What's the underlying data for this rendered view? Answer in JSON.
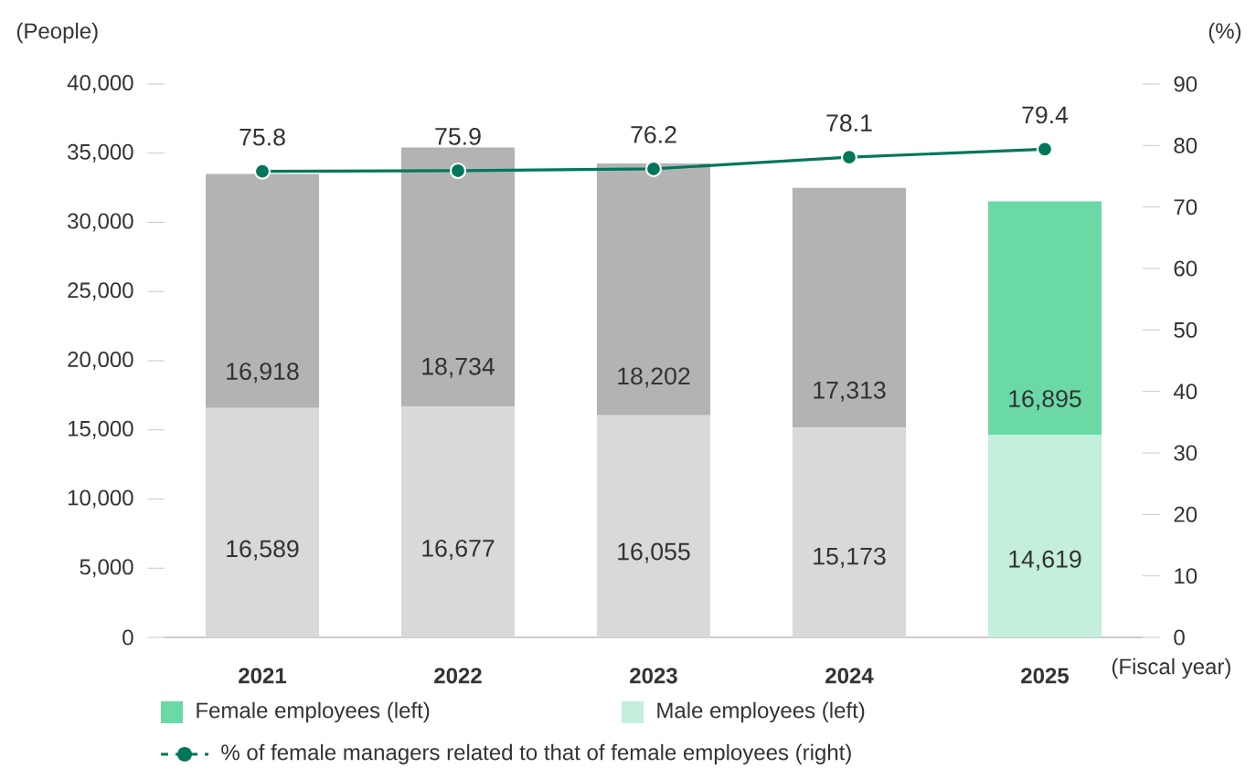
{
  "chart_data": {
    "type": "bar",
    "stacked": true,
    "legend": "bottom",
    "categories": [
      "2021",
      "2022",
      "2023",
      "2024",
      "2025"
    ],
    "xlabel": "(Fiscal year)",
    "ylabel": "(People)",
    "y2label": "(%)",
    "ylim": [
      0,
      40000
    ],
    "yticks": [
      0,
      {
        "value": 5000,
        "label": "5,000"
      },
      {
        "value": 10000,
        "label": "10,000"
      },
      {
        "value": 15000,
        "label": "15,000"
      },
      {
        "value": 20000,
        "label": "20,000"
      },
      {
        "value": 25000,
        "label": "25,000"
      },
      {
        "value": 30000,
        "label": "30,000"
      },
      {
        "value": 35000,
        "label": "35,000"
      },
      {
        "value": 40000,
        "label": "40,000"
      }
    ],
    "y2lim": [
      0,
      90
    ],
    "y2ticks": [
      0,
      10,
      20,
      30,
      40,
      50,
      60,
      70,
      80,
      90
    ],
    "series": [
      {
        "name": "Male employees (left)",
        "color": "#c3efdc",
        "colors": [
          "#d9d9d9",
          "#d9d9d9",
          "#d9d9d9",
          "#d9d9d9",
          "#c3efdc"
        ],
        "values": [
          16589,
          16677,
          16055,
          15173,
          14619
        ],
        "value_labels": [
          "16,589",
          "16,677",
          "16,055",
          "15,173",
          "14,619"
        ]
      },
      {
        "name": "Female employees (left)",
        "color": "#6bd9a5",
        "colors": [
          "#b3b3b3",
          "#b3b3b3",
          "#b3b3b3",
          "#b3b3b3",
          "#6bd9a5"
        ],
        "values": [
          16918,
          18734,
          18202,
          17313,
          16895
        ],
        "value_labels": [
          "16,918",
          "18,734",
          "18,202",
          "17,313",
          "16,895"
        ]
      },
      {
        "name": "% of female managers related to that of female employees (right)",
        "type": "line",
        "axis": "y2",
        "color": "#00775a",
        "marker": "circle",
        "line_style": "solid",
        "values": [
          75.8,
          75.9,
          76.2,
          78.1,
          79.4
        ],
        "value_labels": [
          "75.8",
          "75.9",
          "76.2",
          "78.1",
          "79.4"
        ]
      }
    ]
  }
}
